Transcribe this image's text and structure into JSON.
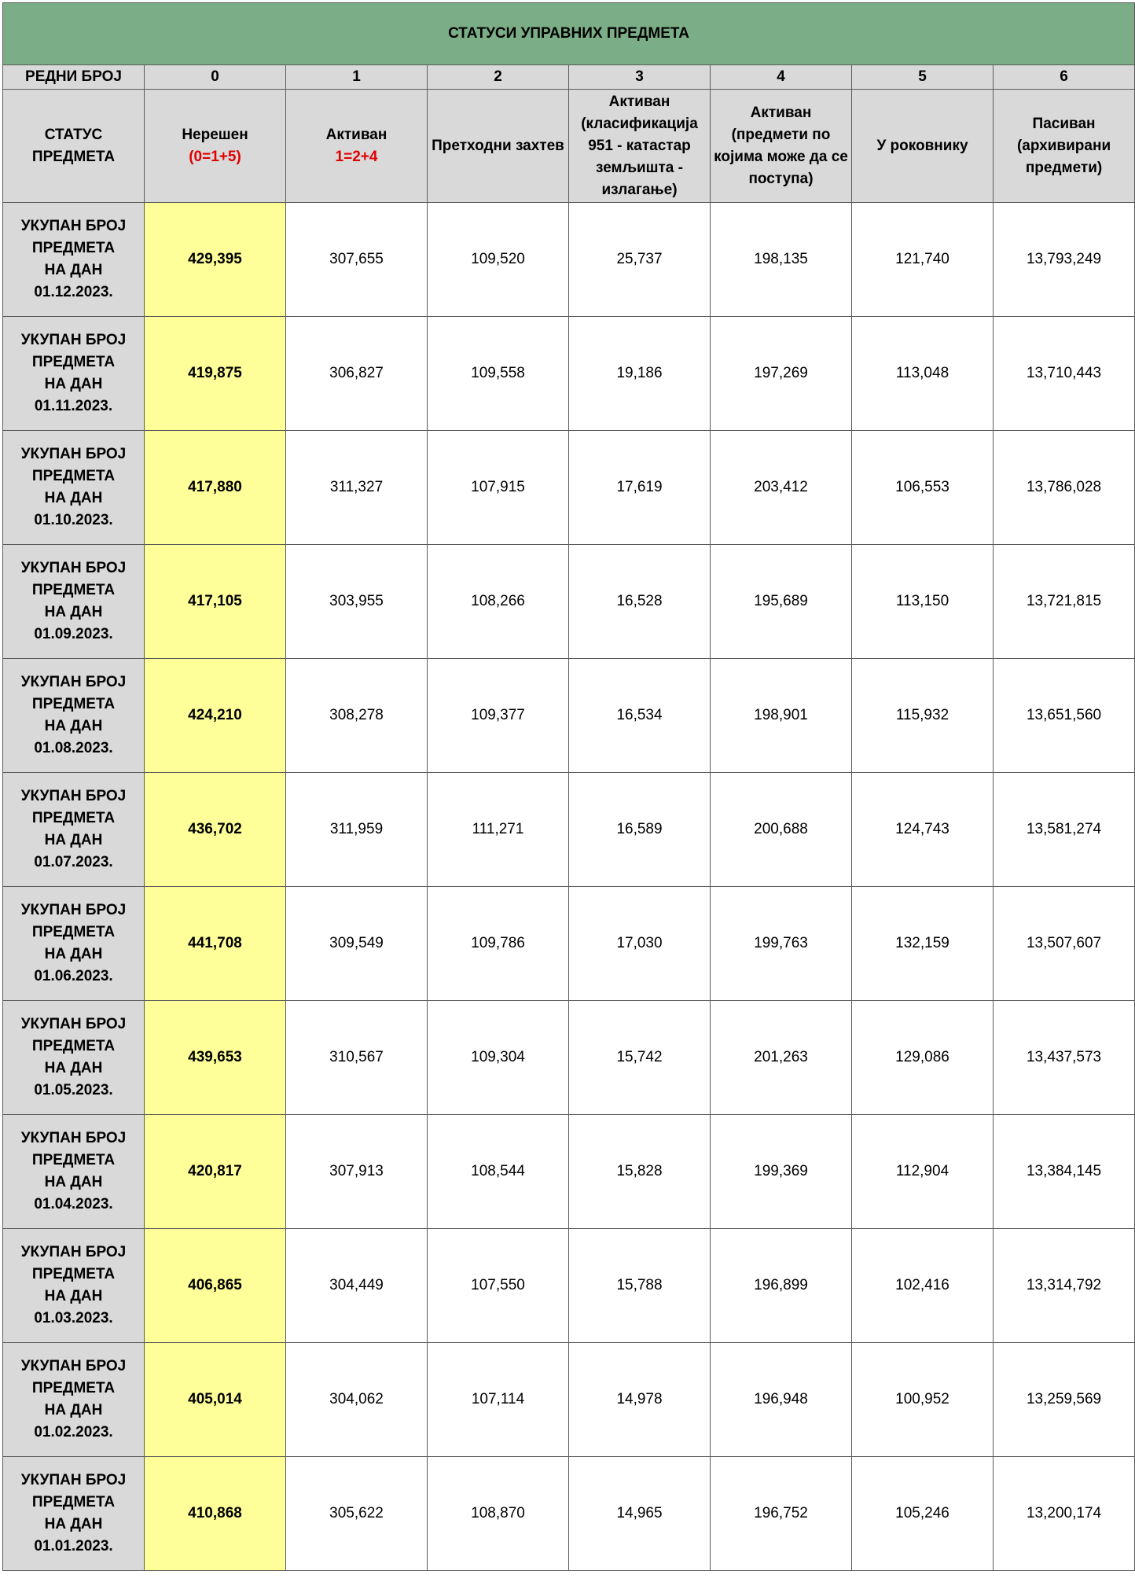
{
  "title": "СТАТУСИ УПРАВНИХ ПРЕДМЕТА",
  "index_row": {
    "label": "РЕДНИ БРОЈ",
    "numbers": [
      "0",
      "1",
      "2",
      "3",
      "4",
      "5",
      "6"
    ]
  },
  "header_row": {
    "label": "СТАТУС ПРЕДМЕТА",
    "columns": [
      {
        "line1": "Нерешен",
        "formula": "(0=1+5)"
      },
      {
        "line1": "Активан",
        "formula": "1=2+4"
      },
      {
        "line1": "Претходни захтев",
        "formula": ""
      },
      {
        "line1": "Активан (класификација 951 -  катастар земљишта - излагање)",
        "formula": ""
      },
      {
        "line1": "Активан (предмети по којима може да се поступа)",
        "formula": ""
      },
      {
        "line1": "У роковнику",
        "formula": ""
      },
      {
        "line1": "Пасиван (архивирани предмети)",
        "formula": ""
      }
    ]
  },
  "row_label_lines": [
    "УКУПАН БРОЈ",
    "ПРЕДМЕТА",
    "НА ДАН"
  ],
  "rows": [
    {
      "date": "01.12.2023.",
      "values": [
        "429,395",
        "307,655",
        "109,520",
        "25,737",
        "198,135",
        "121,740",
        "13,793,249"
      ]
    },
    {
      "date": "01.11.2023.",
      "values": [
        "419,875",
        "306,827",
        "109,558",
        "19,186",
        "197,269",
        "113,048",
        "13,710,443"
      ]
    },
    {
      "date": "01.10.2023.",
      "values": [
        "417,880",
        "311,327",
        "107,915",
        "17,619",
        "203,412",
        "106,553",
        "13,786,028"
      ]
    },
    {
      "date": "01.09.2023.",
      "values": [
        "417,105",
        "303,955",
        "108,266",
        "16,528",
        "195,689",
        "113,150",
        "13,721,815"
      ]
    },
    {
      "date": "01.08.2023.",
      "values": [
        "424,210",
        "308,278",
        "109,377",
        "16,534",
        "198,901",
        "115,932",
        "13,651,560"
      ]
    },
    {
      "date": "01.07.2023.",
      "values": [
        "436,702",
        "311,959",
        "111,271",
        "16,589",
        "200,688",
        "124,743",
        "13,581,274"
      ]
    },
    {
      "date": "01.06.2023.",
      "values": [
        "441,708",
        "309,549",
        "109,786",
        "17,030",
        "199,763",
        "132,159",
        "13,507,607"
      ]
    },
    {
      "date": "01.05.2023.",
      "values": [
        "439,653",
        "310,567",
        "109,304",
        "15,742",
        "201,263",
        "129,086",
        "13,437,573"
      ]
    },
    {
      "date": "01.04.2023.",
      "values": [
        "420,817",
        "307,913",
        "108,544",
        "15,828",
        "199,369",
        "112,904",
        "13,384,145"
      ]
    },
    {
      "date": "01.03.2023.",
      "values": [
        "406,865",
        "304,449",
        "107,550",
        "15,788",
        "196,899",
        "102,416",
        "13,314,792"
      ]
    },
    {
      "date": "01.02.2023.",
      "values": [
        "405,014",
        "304,062",
        "107,114",
        "14,978",
        "196,948",
        "100,952",
        "13,259,569"
      ]
    },
    {
      "date": "01.01.2023.",
      "values": [
        "410,868",
        "305,622",
        "108,870",
        "14,965",
        "196,752",
        "105,246",
        "13,200,174"
      ]
    }
  ],
  "colors": {
    "title_bg": "#7bae86",
    "header_bg": "#d9d9d9",
    "highlight_bg": "#ffff99",
    "accent_red": "#e00000"
  }
}
